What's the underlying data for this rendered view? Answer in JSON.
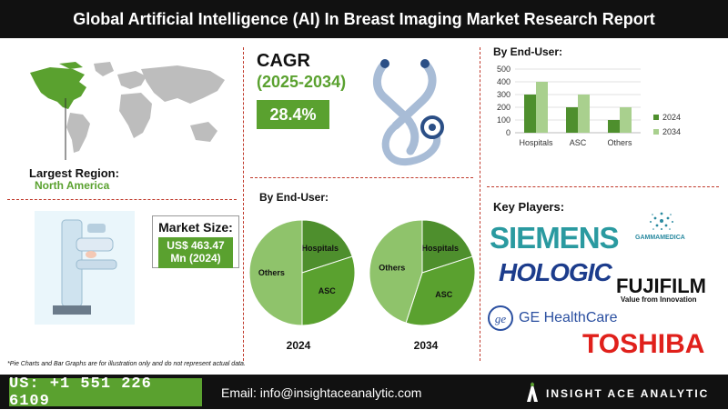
{
  "header": {
    "title": "Global Artificial Intelligence (AI) In Breast Imaging Market Research Report"
  },
  "region": {
    "label": "Largest Region:",
    "value": "North America"
  },
  "market_size": {
    "label": "Market Size:",
    "line1": "US$ 463.47",
    "line2": "Mn (2024)"
  },
  "cagr": {
    "title": "CAGR",
    "years": "(2025-2034)",
    "value": "28.4%"
  },
  "end_user_pies": {
    "heading": "By End-User:"
  },
  "end_user_bars": {
    "heading": "By End-User:"
  },
  "key_players": {
    "heading": "Key Players:",
    "siemens": "SIEMENS",
    "gammamedica": "GAMMAMEDICA",
    "hologic": "HOLOGIC",
    "fujifilm": "FUJIFILM",
    "fujifilm_tagline": "Value from Innovation",
    "ge": "GE HealthCare",
    "toshiba": "TOSHIBA"
  },
  "footnote": "*Pie Charts and Bar Graphs are for illustration only and do not represent actual data.",
  "footer": {
    "phone": "US: +1 551 226 6109",
    "email": "Email: info@insightaceanalytic.com",
    "brand": "INSIGHT ACE ANALYTIC"
  },
  "colors": {
    "accent_green": "#5aa12f",
    "dark_green": "#4e8f2d",
    "light_green": "#8fc36b",
    "pale_green": "#a9d08e"
  },
  "chart_data": [
    {
      "type": "pie",
      "title": "",
      "year_label": "2024",
      "labels": [
        "Hospitals",
        "ASC",
        "Others"
      ],
      "values": [
        20,
        30,
        50
      ],
      "colors": [
        "#4e8f2d",
        "#5aa12f",
        "#8fc36b"
      ]
    },
    {
      "type": "pie",
      "title": "",
      "year_label": "2034",
      "labels": [
        "Hospitals",
        "ASC",
        "Others"
      ],
      "values": [
        20,
        35,
        45
      ],
      "colors": [
        "#4e8f2d",
        "#5aa12f",
        "#8fc36b"
      ]
    },
    {
      "type": "bar",
      "categories": [
        "Hospitals",
        "ASC",
        "Others"
      ],
      "series": [
        {
          "name": "2024",
          "values": [
            300,
            200,
            100
          ],
          "color": "#4e8f2d"
        },
        {
          "name": "2034",
          "values": [
            400,
            300,
            200
          ],
          "color": "#a9d08e"
        }
      ],
      "ylim": [
        0,
        500
      ],
      "yticks": [
        0,
        100,
        200,
        300,
        400,
        500
      ],
      "legend": "right"
    }
  ]
}
